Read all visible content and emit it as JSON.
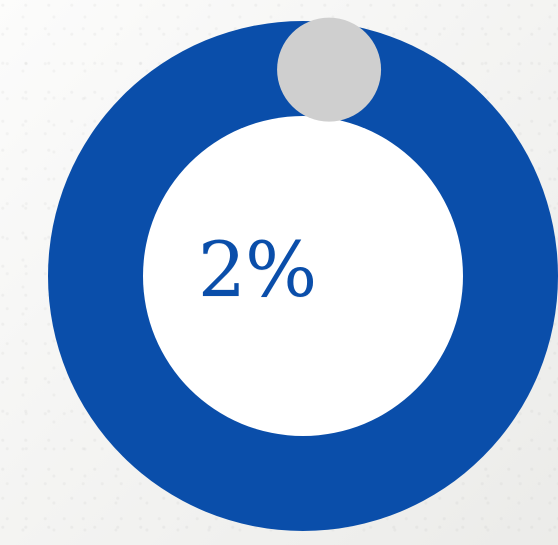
{
  "chart_data": {
    "type": "pie",
    "style": "donut",
    "value": 2,
    "max": 100,
    "center_label": "2%",
    "colors": {
      "primary": "#0a4eaa",
      "marker": "#cfcfcf",
      "inner": "#ffffff",
      "label": "#0a4eaa"
    }
  }
}
